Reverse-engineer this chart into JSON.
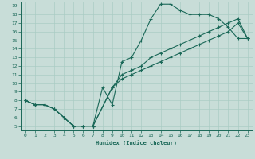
{
  "xlabel": "Humidex (Indice chaleur)",
  "xlim": [
    -0.5,
    23.5
  ],
  "ylim": [
    4.5,
    19.5
  ],
  "xticks": [
    0,
    1,
    2,
    3,
    4,
    5,
    6,
    7,
    8,
    9,
    10,
    11,
    12,
    13,
    14,
    15,
    16,
    17,
    18,
    19,
    20,
    21,
    22,
    23
  ],
  "yticks": [
    5,
    6,
    7,
    8,
    9,
    10,
    11,
    12,
    13,
    14,
    15,
    16,
    17,
    18,
    19
  ],
  "bg_color": "#c8ddd8",
  "line_color": "#1a6858",
  "grid_color": "#aaccc4",
  "line1_x": [
    0,
    1,
    2,
    3,
    4,
    5,
    6,
    7,
    8,
    9,
    10,
    11,
    12,
    13,
    14,
    15,
    16,
    17,
    18,
    19,
    20,
    21,
    22,
    23
  ],
  "line1_y": [
    8,
    7.5,
    7.5,
    7,
    6,
    5,
    5,
    5,
    9.5,
    7.5,
    12.5,
    13.0,
    15.0,
    17.5,
    19.2,
    19.2,
    18.5,
    18.0,
    18.0,
    18.0,
    17.5,
    16.5,
    15.2,
    15.2
  ],
  "line2_x": [
    0,
    1,
    2,
    3,
    4,
    5,
    6,
    7,
    9,
    10,
    11,
    12,
    13,
    14,
    15,
    16,
    17,
    18,
    19,
    20,
    21,
    22,
    23
  ],
  "line2_y": [
    8,
    7.5,
    7.5,
    7,
    6,
    5,
    5,
    5,
    9.5,
    11.0,
    11.5,
    12.0,
    13.0,
    13.5,
    14.0,
    14.5,
    15.0,
    15.5,
    16.0,
    16.5,
    17.0,
    17.5,
    15.2
  ],
  "line3_x": [
    0,
    1,
    2,
    3,
    4,
    5,
    6,
    7,
    9,
    10,
    11,
    12,
    13,
    14,
    15,
    16,
    17,
    18,
    19,
    20,
    21,
    22,
    23
  ],
  "line3_y": [
    8,
    7.5,
    7.5,
    7,
    6,
    5,
    5,
    5,
    9.5,
    10.5,
    11.0,
    11.5,
    12.0,
    12.5,
    13.0,
    13.5,
    14.0,
    14.5,
    15.0,
    15.5,
    16.0,
    17.0,
    15.2
  ]
}
